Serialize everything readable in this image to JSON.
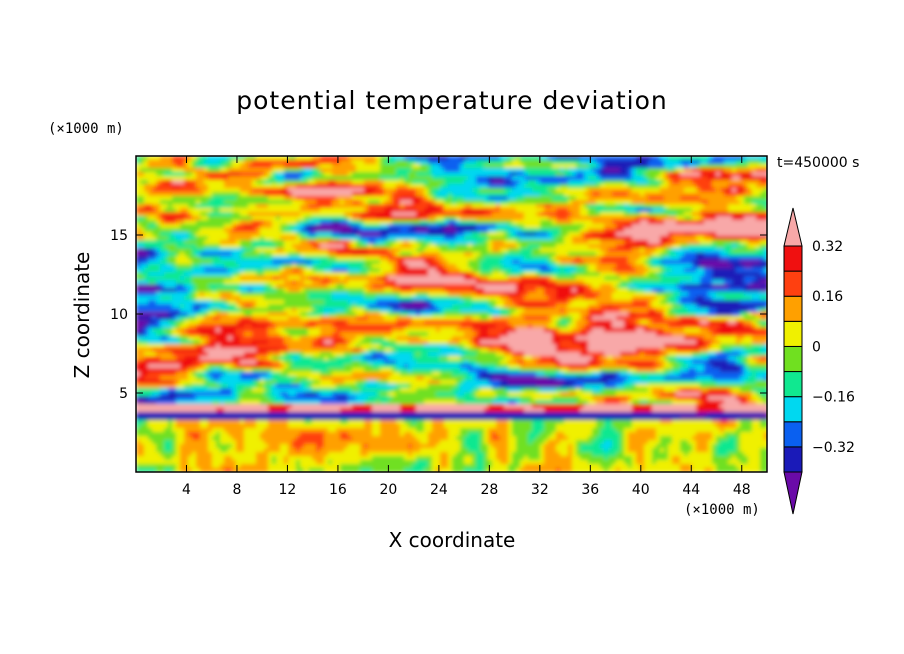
{
  "chart_data": {
    "type": "heatmap",
    "title": "potential temperature deviation",
    "xlabel": "X coordinate",
    "ylabel": "Z coordinate",
    "x_unit": "(×1000 m)",
    "y_unit": "(×1000 m)",
    "time_label": "t=450000 s",
    "xlim": [
      0,
      50
    ],
    "ylim": [
      0,
      20
    ],
    "x_ticks": [
      4,
      8,
      12,
      16,
      20,
      24,
      28,
      32,
      36,
      40,
      44,
      48
    ],
    "y_ticks": [
      5,
      10,
      15
    ],
    "colorbar": {
      "levels": [
        -0.4,
        -0.32,
        -0.24,
        -0.16,
        -0.08,
        0,
        0.08,
        0.16,
        0.24,
        0.32,
        0.4
      ],
      "labels": [
        {
          "value": 0.32,
          "text": "0.32"
        },
        {
          "value": 0.16,
          "text": "0.16"
        },
        {
          "value": 0,
          "text": "0"
        },
        {
          "value": -0.16,
          "text": "−0.16"
        },
        {
          "value": -0.32,
          "text": "−0.32"
        }
      ],
      "colors": [
        "#6a0aa8",
        "#1a1ab8",
        "#0a60f0",
        "#00d8f0",
        "#10e890",
        "#70e020",
        "#f0f000",
        "#ffa000",
        "#ff4010",
        "#f01010",
        "#f8a8a8"
      ],
      "extend": "both"
    },
    "structure": {
      "boundary_layer_top_km": 3.3,
      "note_free": ""
    }
  }
}
